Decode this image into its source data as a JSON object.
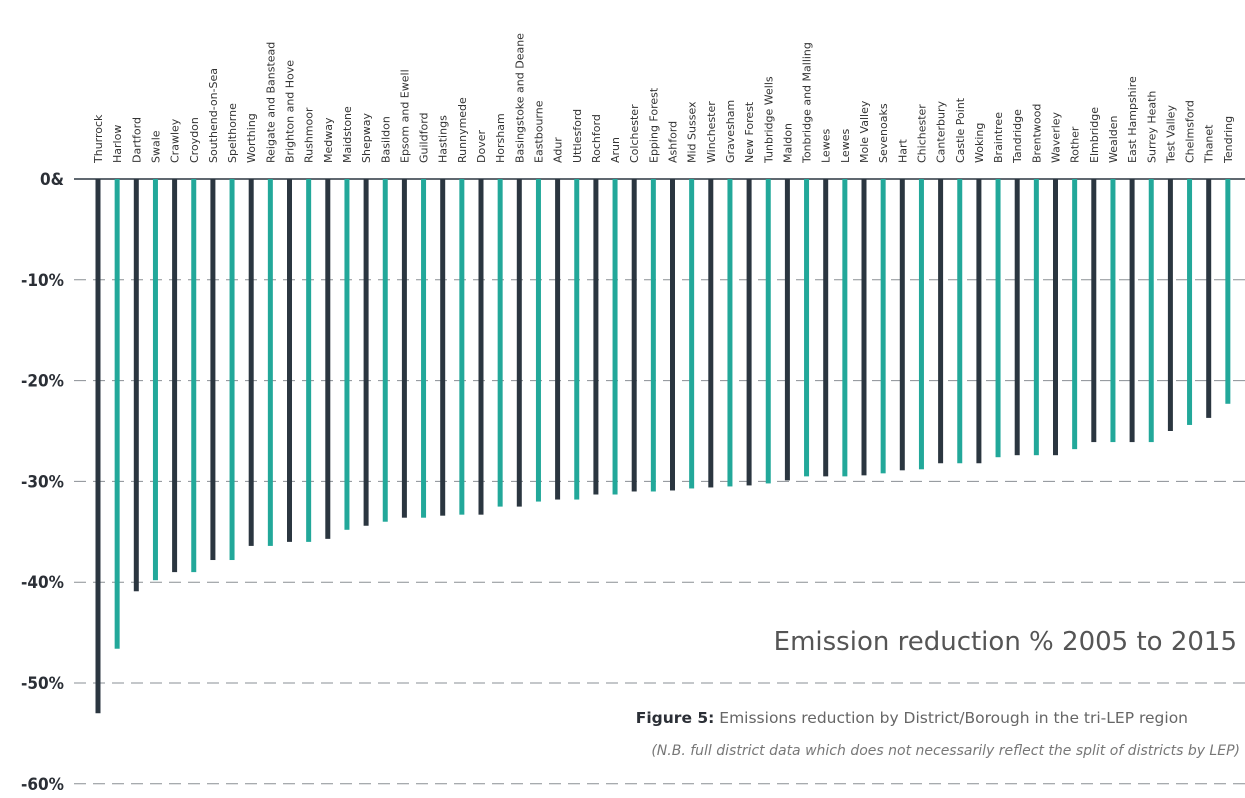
{
  "chart_data": {
    "type": "bar",
    "title": "Emission reduction % 2005 to 2015",
    "ylim": [
      -60,
      0
    ],
    "yticks": [
      0,
      -10,
      -20,
      -30,
      -40,
      -50,
      -60
    ],
    "ytick_labels": [
      "0&",
      "-10%",
      "-20%",
      "-30%",
      "-40%",
      "-50%",
      "-60%"
    ],
    "grid": "dashed horizontal",
    "colors": {
      "dark": "#2b3640",
      "teal": "#22a89a"
    },
    "categories": [
      "Thurrock",
      "Harlow",
      "Dartford",
      "Swale",
      "Crawley",
      "Croydon",
      "Southend-on-Sea",
      "Spelthorne",
      "Worthing",
      "Reigate and Banstead",
      "Brighton and Hove",
      "Rushmoor",
      "Medway",
      "Maidstone",
      "Shepway",
      "Basildon",
      "Epsom and Ewell",
      "Guildford",
      "Hastings",
      "Runnymede",
      "Dover",
      "Horsham",
      "Basingstoke and Deane",
      "Eastbourne",
      "Adur",
      "Uttlesford",
      "Rochford",
      "Arun",
      "Colchester",
      "Epping Forest",
      "Ashford",
      "Mid Sussex",
      "Winchester",
      "Gravesham",
      "New Forest",
      "Tunbridge Wells",
      "Maldon",
      "Tonbridge and Malling",
      "Lewes",
      "Lewes",
      "Mole Valley",
      "Sevenoaks",
      "Hart",
      "Chichester",
      "Canterbury",
      "Castle Point",
      "Woking",
      "Braintree",
      "Tandridge",
      "Brentwood",
      "Waverley",
      "Rother",
      "Elmbridge",
      "Wealden",
      "East Hampshire",
      "Surrey Heath",
      "Test Valley",
      "Chelmsford",
      "Thanet",
      "Tendring"
    ],
    "values": [
      -53.0,
      -46.6,
      -40.9,
      -39.8,
      -39.0,
      -39.0,
      -37.8,
      -37.8,
      -36.4,
      -36.4,
      -36.0,
      -36.0,
      -35.7,
      -34.8,
      -34.4,
      -34.0,
      -33.6,
      -33.6,
      -33.4,
      -33.3,
      -33.3,
      -32.5,
      -32.5,
      -32.0,
      -31.8,
      -31.8,
      -31.3,
      -31.3,
      -31.0,
      -31.0,
      -30.9,
      -30.7,
      -30.6,
      -30.5,
      -30.4,
      -30.2,
      -29.9,
      -29.5,
      -29.5,
      -29.5,
      -29.4,
      -29.2,
      -28.9,
      -28.8,
      -28.2,
      -28.2,
      -28.2,
      -27.6,
      -27.4,
      -27.4,
      -27.4,
      -26.8,
      -26.1,
      -26.1,
      -26.1,
      -26.1,
      -25.0,
      -24.4,
      -23.7,
      -22.3
    ],
    "bar_colors": [
      "dark",
      "teal",
      "dark",
      "teal",
      "dark",
      "teal",
      "dark",
      "teal",
      "dark",
      "teal",
      "dark",
      "teal",
      "dark",
      "teal",
      "dark",
      "teal",
      "dark",
      "teal",
      "dark",
      "teal",
      "dark",
      "teal",
      "dark",
      "teal",
      "dark",
      "teal",
      "dark",
      "teal",
      "dark",
      "teal",
      "dark",
      "teal",
      "dark",
      "teal",
      "dark",
      "teal",
      "dark",
      "teal",
      "dark",
      "teal",
      "dark",
      "teal",
      "dark",
      "teal",
      "dark",
      "teal",
      "dark",
      "teal",
      "dark",
      "teal",
      "dark",
      "teal",
      "dark",
      "teal",
      "dark",
      "teal",
      "dark",
      "teal",
      "dark",
      "teal"
    ]
  },
  "caption": {
    "figure_label": "Figure 5:",
    "figure_text": " Emissions reduction by District/Borough in the tri-LEP region",
    "note": "(N.B. full district data which does not necessarily reflect the split of districts by LEP)"
  }
}
